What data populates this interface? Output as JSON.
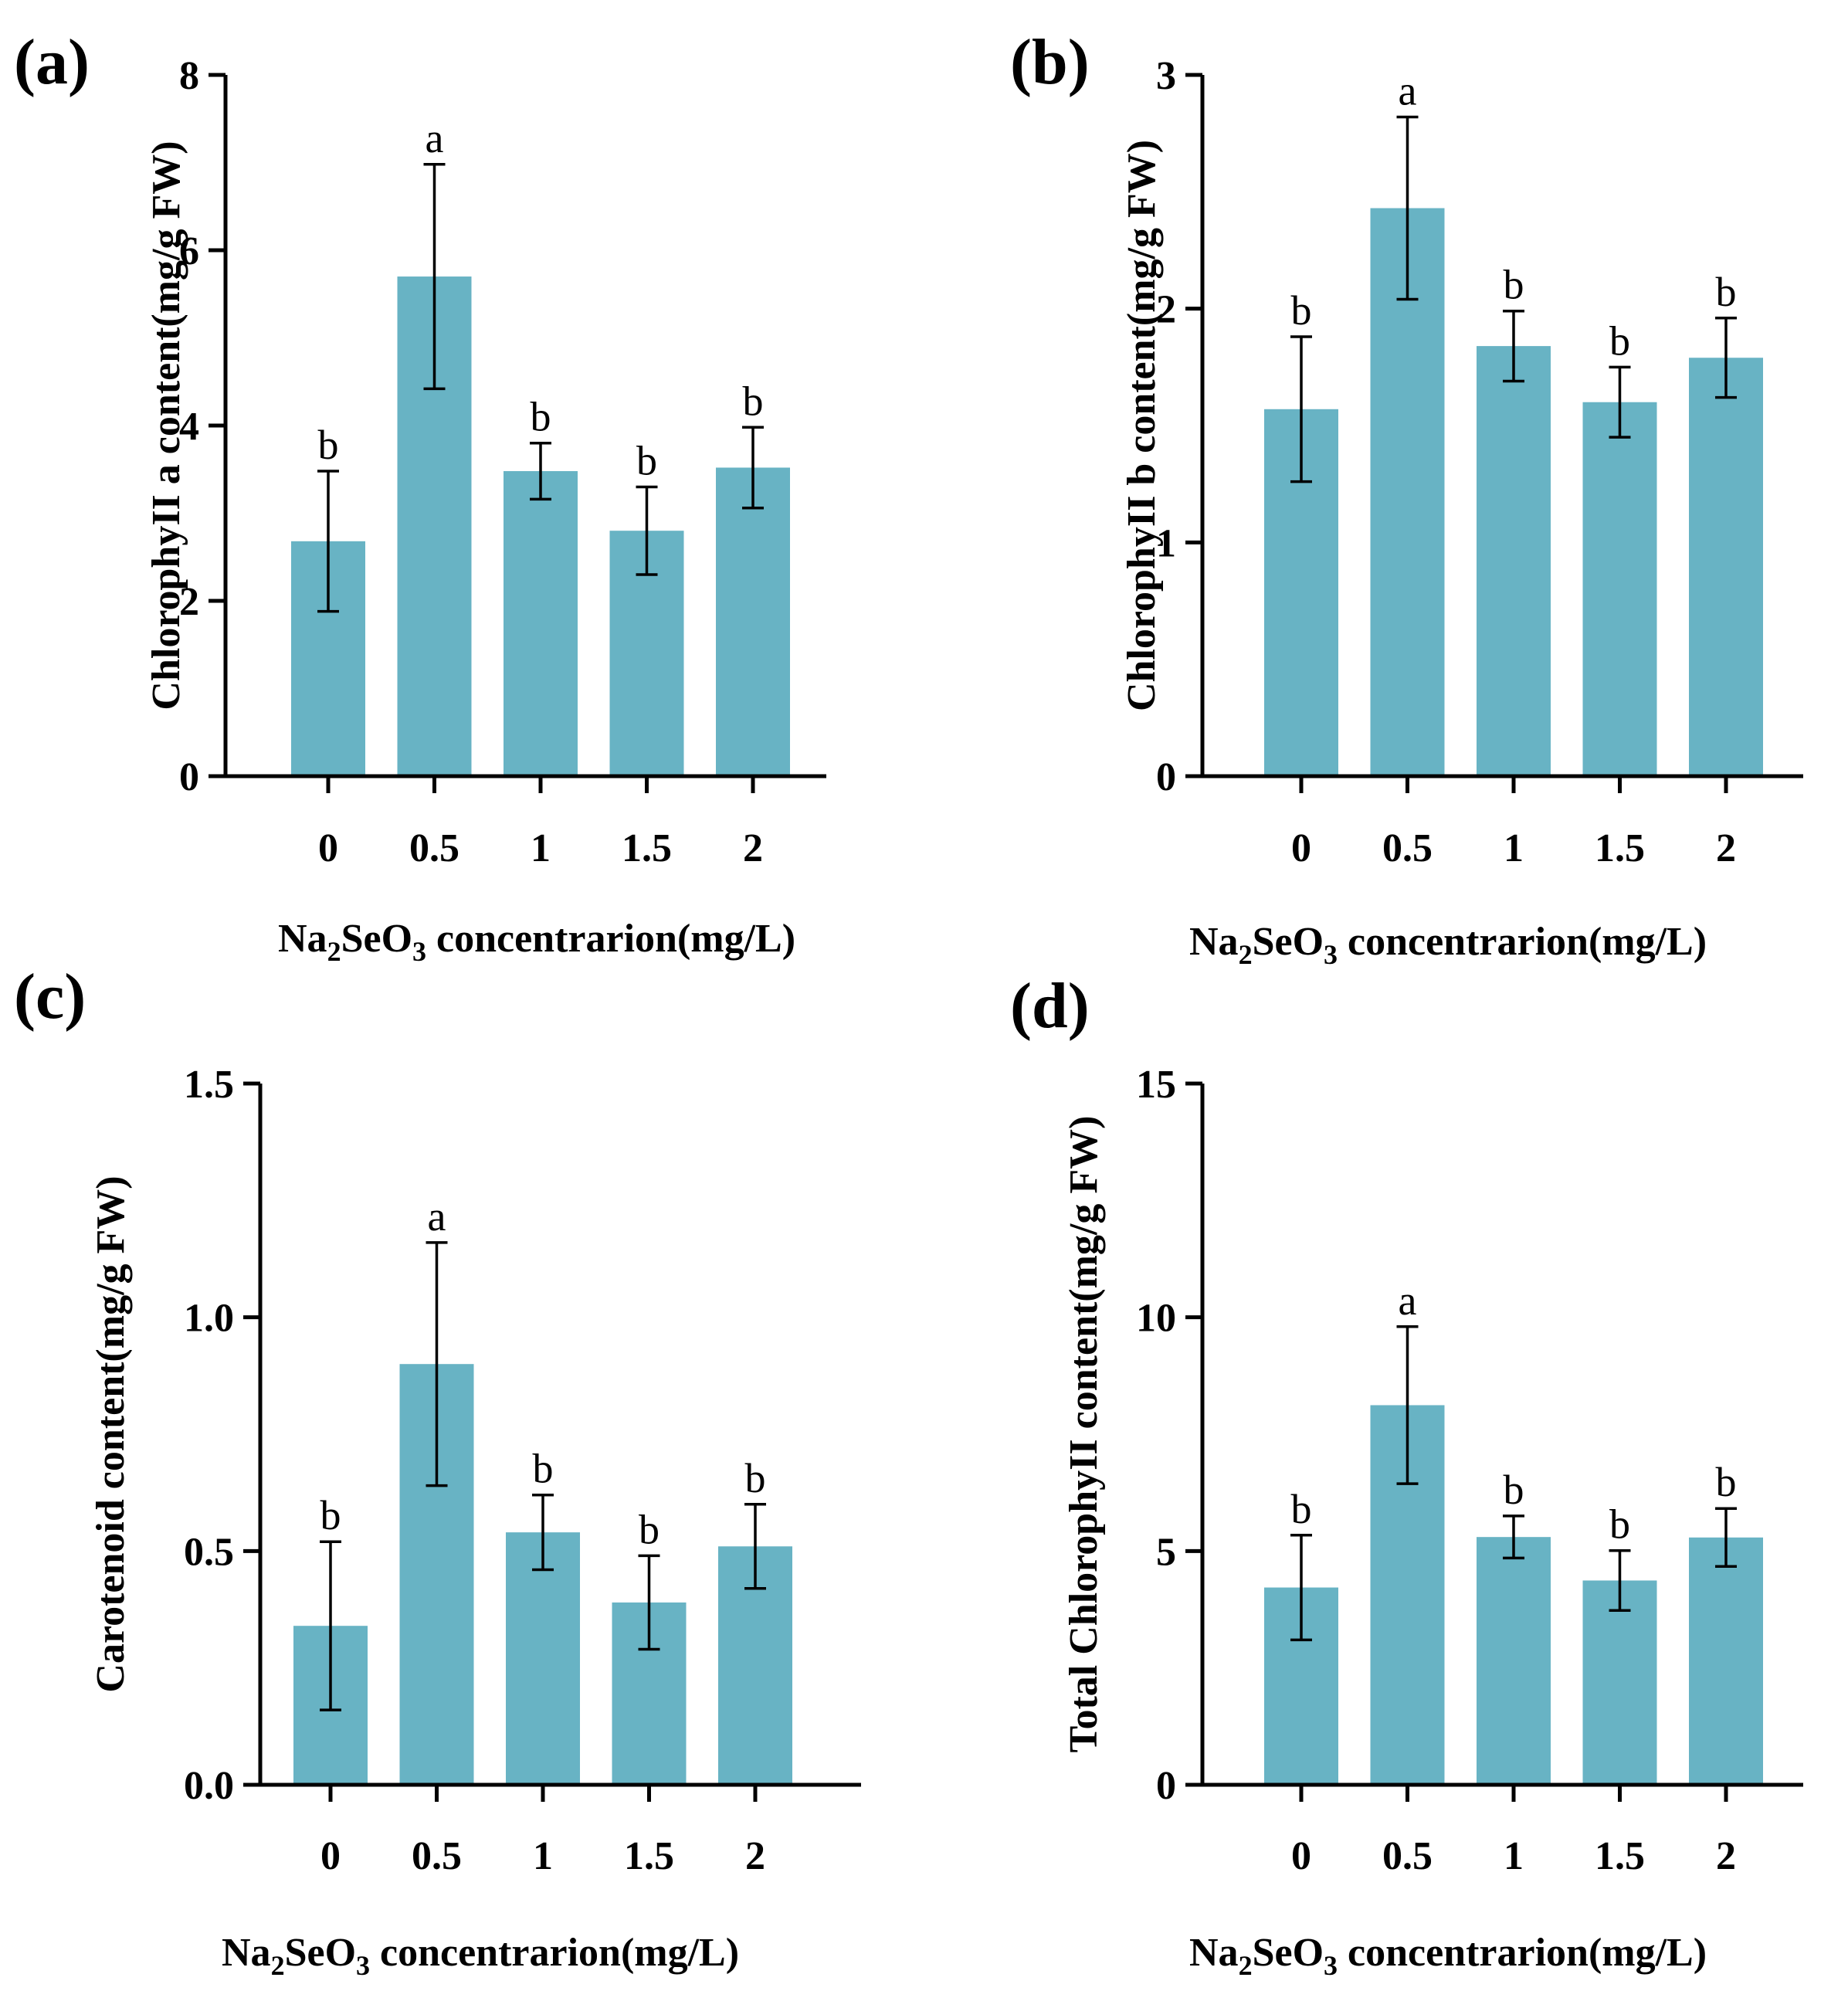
{
  "figure": {
    "bar_color": "#68B3C4",
    "x_title": {
      "prefix": "Na",
      "sub1": "2",
      "mid": "SeO",
      "sub2": "3",
      "suffix": " concentrarion(mg/L)"
    }
  },
  "chart_data": [
    {
      "panel": "(a)",
      "type": "bar",
      "categories": [
        "0",
        "0.5",
        "1",
        "1.5",
        "2"
      ],
      "values": [
        2.68,
        5.7,
        3.48,
        2.8,
        3.52
      ],
      "errors": [
        0.8,
        1.28,
        0.32,
        0.5,
        0.46
      ],
      "significance": [
        "b",
        "a",
        "b",
        "b",
        "b"
      ],
      "ylabel": "ChlorophyII a content(mg/g FW)",
      "xlabel": "Na2SeO3 concentrarion(mg/L)",
      "ylim": [
        0,
        8
      ],
      "yticks": [
        "0",
        "2",
        "4",
        "6",
        "8"
      ],
      "ytick_values": [
        0,
        2,
        4,
        6,
        8
      ]
    },
    {
      "panel": "(b)",
      "type": "bar",
      "categories": [
        "0",
        "0.5",
        "1",
        "1.5",
        "2"
      ],
      "values": [
        1.57,
        2.43,
        1.84,
        1.6,
        1.79
      ],
      "errors": [
        0.31,
        0.39,
        0.15,
        0.15,
        0.17
      ],
      "significance": [
        "b",
        "a",
        "b",
        "b",
        "b"
      ],
      "ylabel": "ChlorophyII b content(mg/g FW)",
      "xlabel": "Na2SeO3 concentrarion(mg/L)",
      "ylim": [
        0,
        3
      ],
      "yticks": [
        "0",
        "1",
        "2",
        "3"
      ],
      "ytick_values": [
        0,
        1,
        2,
        3
      ]
    },
    {
      "panel": "(c)",
      "type": "bar",
      "categories": [
        "0",
        "0.5",
        "1",
        "1.5",
        "2"
      ],
      "values": [
        0.34,
        0.9,
        0.54,
        0.39,
        0.51
      ],
      "errors": [
        0.18,
        0.26,
        0.08,
        0.1,
        0.09
      ],
      "significance": [
        "b",
        "a",
        "b",
        "b",
        "b"
      ],
      "ylabel": "Carotenoid content(mg/g FW)",
      "xlabel": "Na2SeO3 concentrarion(mg/L)",
      "ylim": [
        0,
        1.5
      ],
      "yticks": [
        "0.0",
        "0.5",
        "1.0",
        "1.5"
      ],
      "ytick_values": [
        0,
        0.5,
        1.0,
        1.5
      ]
    },
    {
      "panel": "(d)",
      "type": "bar",
      "categories": [
        "0",
        "0.5",
        "1",
        "1.5",
        "2"
      ],
      "values": [
        4.22,
        8.12,
        5.3,
        4.37,
        5.29
      ],
      "errors": [
        1.12,
        1.68,
        0.45,
        0.64,
        0.62
      ],
      "significance": [
        "b",
        "a",
        "b",
        "b",
        "b"
      ],
      "ylabel": "Total ChlorophyII content(mg/g FW)",
      "xlabel": "Na2SeO3 concentrarion(mg/L)",
      "ylim": [
        0,
        15
      ],
      "yticks": [
        "0",
        "5",
        "10",
        "15"
      ],
      "ytick_values": [
        0,
        5,
        10,
        15
      ]
    }
  ]
}
